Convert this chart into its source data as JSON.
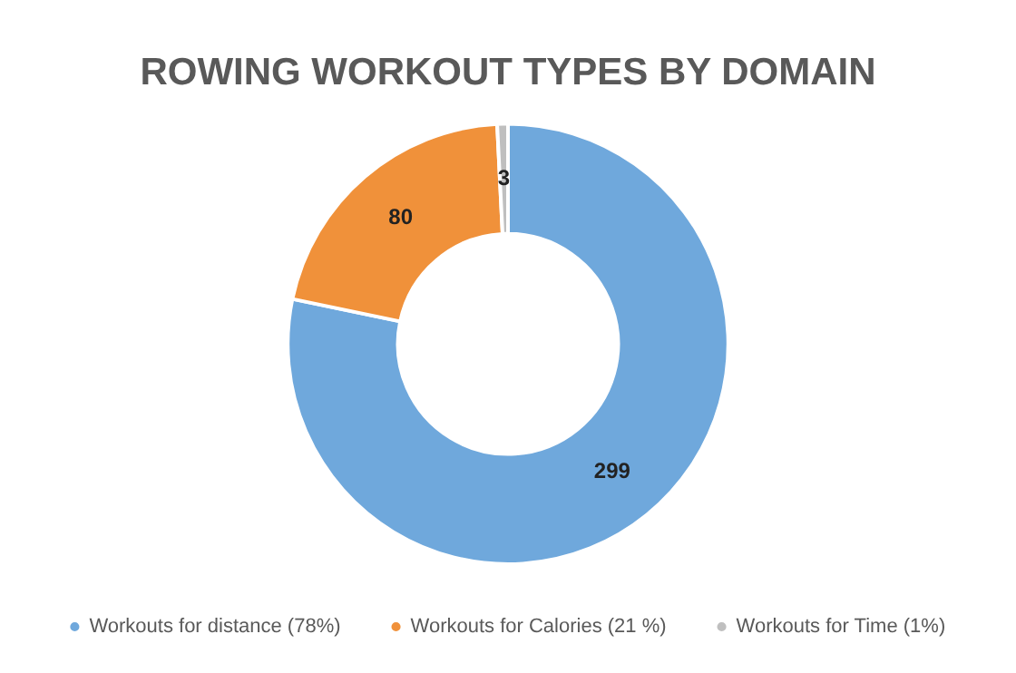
{
  "chart_data": {
    "type": "donut",
    "title": "ROWING WORKOUT TYPES BY DOMAIN",
    "categories": [
      "Workouts for distance (78%)",
      "Workouts for Calories (21 %)",
      "Workouts for Time (1%)"
    ],
    "values": [
      299,
      80,
      3
    ],
    "colors": [
      "#6fa8dc",
      "#f0913a",
      "#bfbfbf"
    ],
    "data_labels": true,
    "legend": "bottom"
  }
}
